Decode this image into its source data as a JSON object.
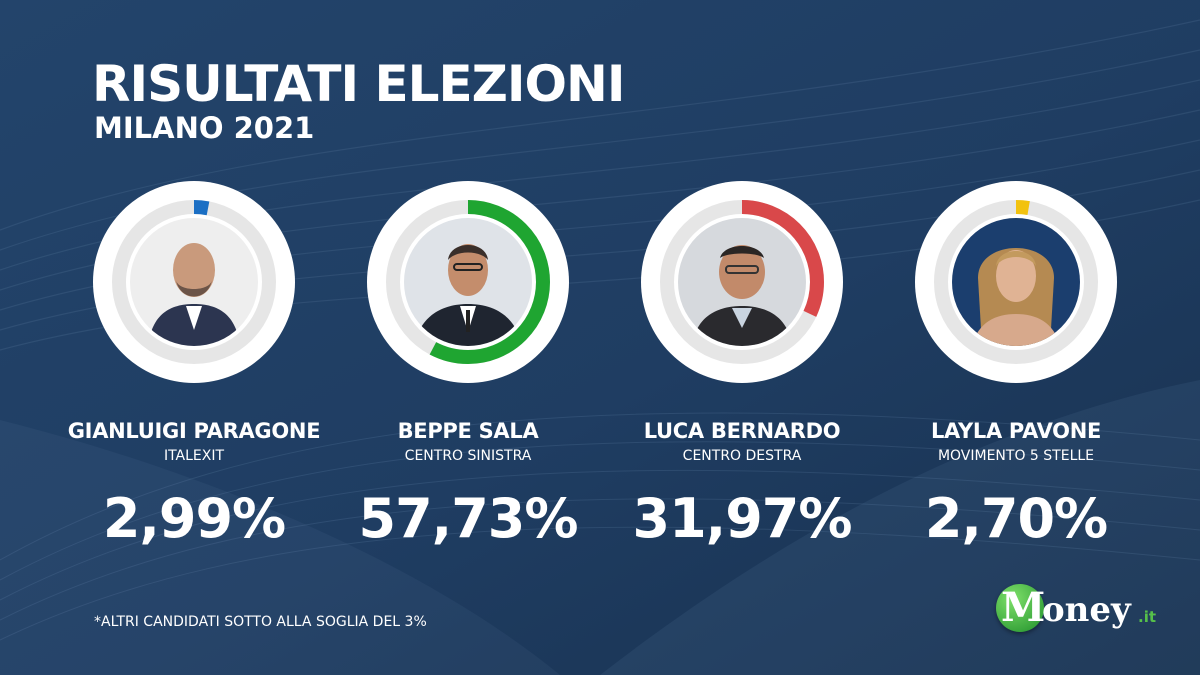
{
  "header": {
    "title": "RISULTATI ELEZIONI",
    "subtitle": "MILANO 2021"
  },
  "chart_data": {
    "type": "pie",
    "title": "RISULTATI ELEZIONI",
    "subtitle": "MILANO 2021",
    "series": [
      {
        "name": "GIANLUIGI PARAGONE",
        "party": "ITALEXIT",
        "value": 2.99,
        "label": "2,99%",
        "color": "#1b6fc4"
      },
      {
        "name": "BEPPE SALA",
        "party": "CENTRO SINISTRA",
        "value": 57.73,
        "label": "57,73%",
        "color": "#1fa531"
      },
      {
        "name": "LUCA BERNARDO",
        "party": "CENTRO DESTRA",
        "value": 31.97,
        "label": "31,97%",
        "color": "#d9484a"
      },
      {
        "name": "LAYLA PAVONE",
        "party": "MOVIMENTO 5 STELLE",
        "value": 2.7,
        "label": "2,70%",
        "color": "#f2c20f"
      }
    ]
  },
  "footnote": "*ALTRI CANDIDATI SOTTO ALLA SOGLIA DEL 3%",
  "logo": {
    "initial": "M",
    "rest": "oney",
    "suffix": ".it"
  },
  "colors": {
    "background": "#1e3a5c",
    "ring_track": "#e6e6e6",
    "text": "#ffffff",
    "logo_green": "#56c04a"
  },
  "icons": {
    "candidate_photo": "person-portrait-icon"
  }
}
